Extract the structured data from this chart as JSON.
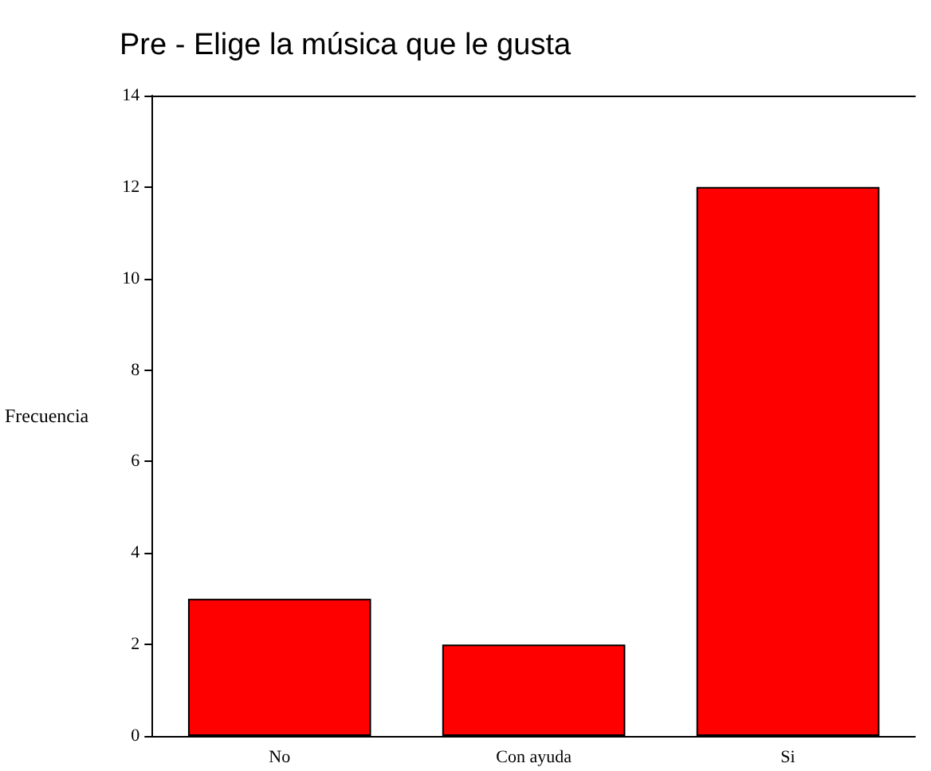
{
  "chart_data": {
    "type": "bar",
    "title": "Pre - Elige la música que le gusta",
    "ylabel": "Frecuencia",
    "categories": [
      "No",
      "Con ayuda",
      "Si"
    ],
    "values": [
      3,
      2,
      12
    ],
    "color": "#ff0000",
    "ylim": [
      0,
      14
    ],
    "yticks": [
      0,
      2,
      4,
      6,
      8,
      10,
      12,
      14
    ]
  }
}
